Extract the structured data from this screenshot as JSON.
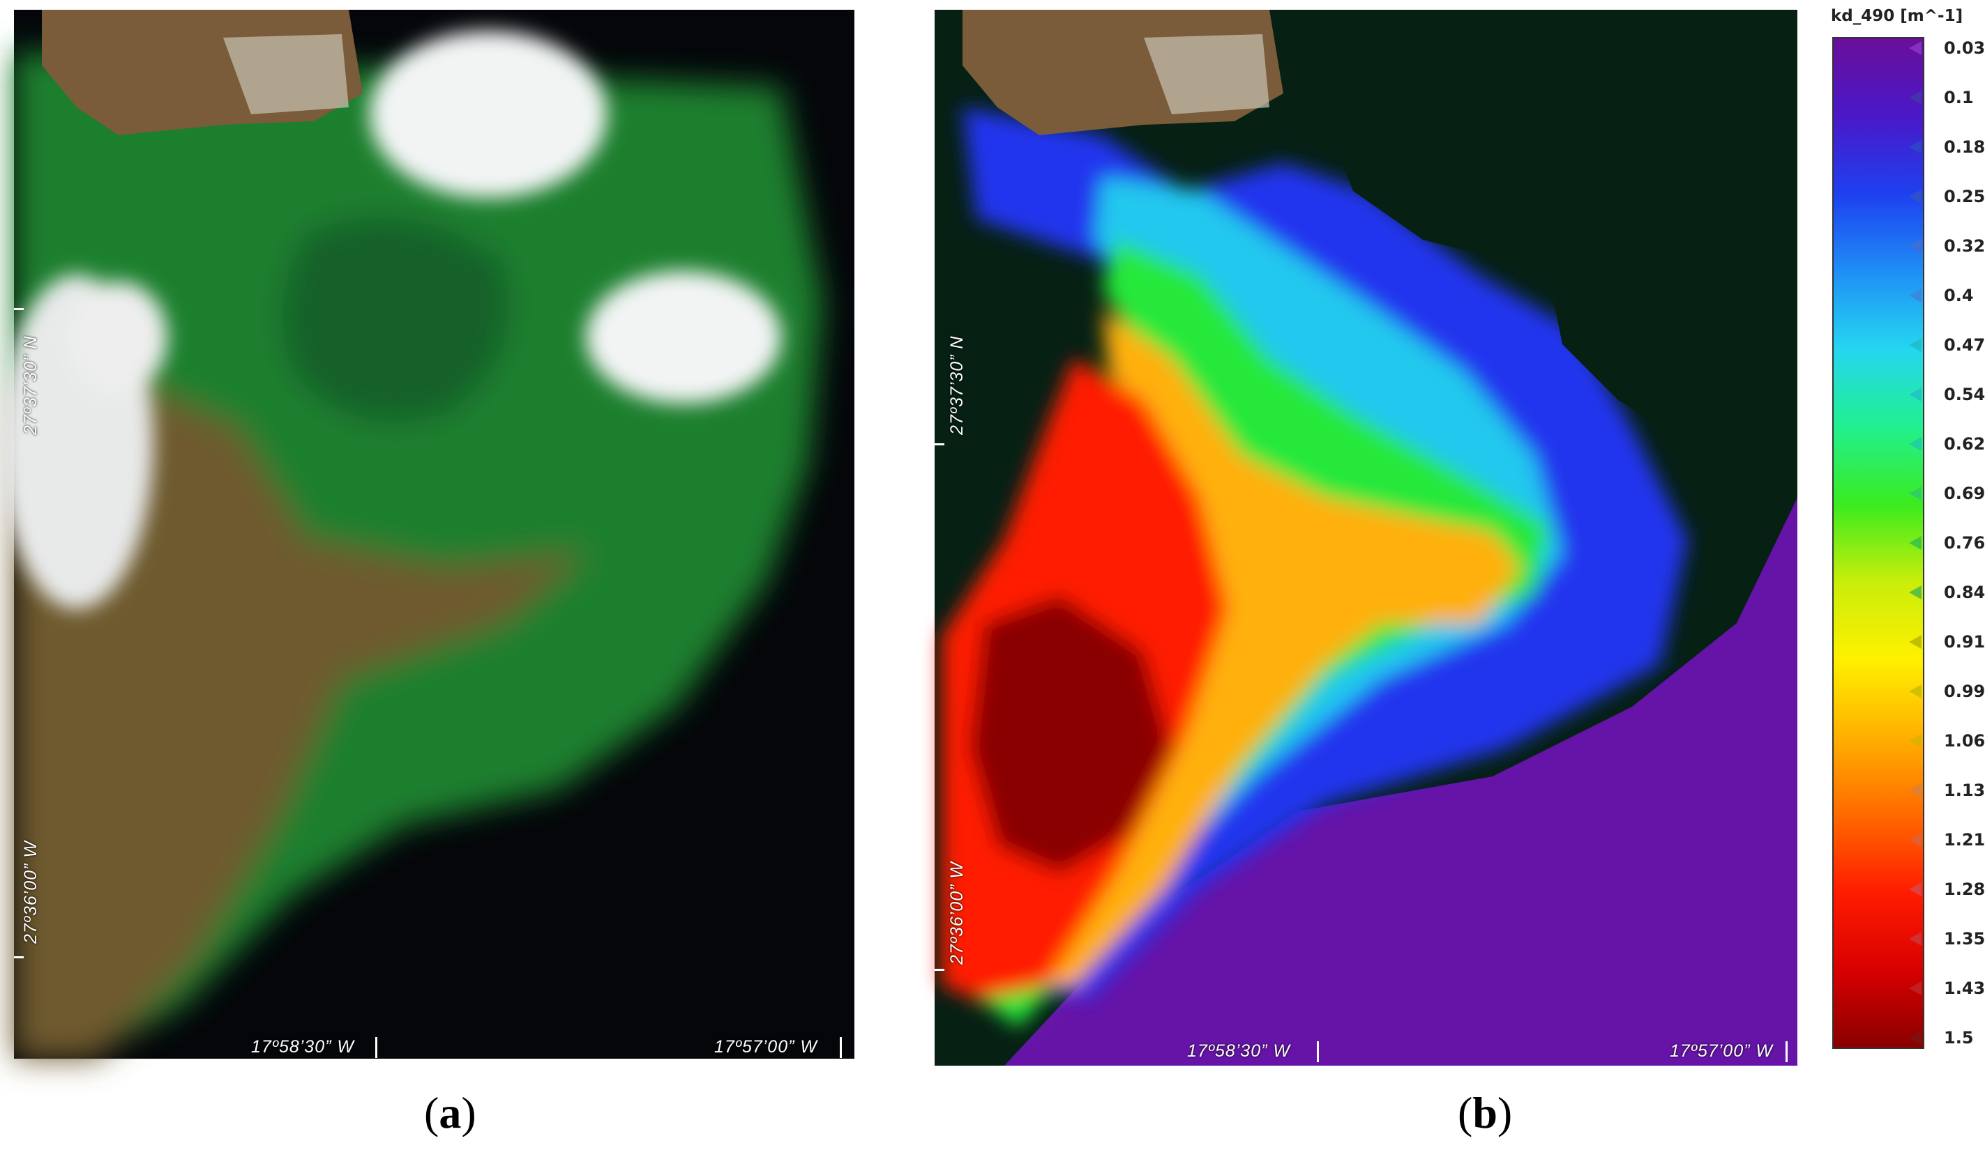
{
  "panel_a": {
    "label": "a",
    "coords": {
      "lat_north": "27º37’30” N",
      "lat_south": "27º36’00” W",
      "lon_west": "17º58’30” W",
      "lon_east": "17º57’00” W"
    }
  },
  "panel_b": {
    "label": "b",
    "coords": {
      "lat_north": "27º37’30” N",
      "lat_south": "27º36’00” W",
      "lon_west": "17º58’30” W",
      "lon_east": "17º57’00” W"
    }
  },
  "legend": {
    "title": "kd_490 [m^-1]",
    "ticks": [
      "0.03",
      "0.1",
      "0.18",
      "0.25",
      "0.32",
      "0.4",
      "0.47",
      "0.54",
      "0.62",
      "0.69",
      "0.76",
      "0.84",
      "0.91",
      "0.99",
      "1.06",
      "1.13",
      "1.21",
      "1.28",
      "1.35",
      "1.43",
      "1.5"
    ],
    "gradient_colors": [
      "#6a0f9a",
      "#4a18c8",
      "#1e40f0",
      "#1f8ef5",
      "#24d6f0",
      "#22f090",
      "#3aeb1f",
      "#c9ee0a",
      "#fff000",
      "#ffb000",
      "#ff6a00",
      "#ff1c00",
      "#d80000",
      "#8a0000"
    ],
    "arrow_colors": [
      "#8a2ec0",
      "#4532b0",
      "#3042c8",
      "#3050c8",
      "#3a70d8",
      "#3a88e0",
      "#20c0d0",
      "#20c8c0",
      "#20d0a0",
      "#30d060",
      "#40c840",
      "#60c040",
      "#c0c000",
      "#d0c000",
      "#e0b000",
      "#e08030",
      "#e06030",
      "#e04040",
      "#d03030",
      "#c02020",
      "#801010"
    ]
  }
}
